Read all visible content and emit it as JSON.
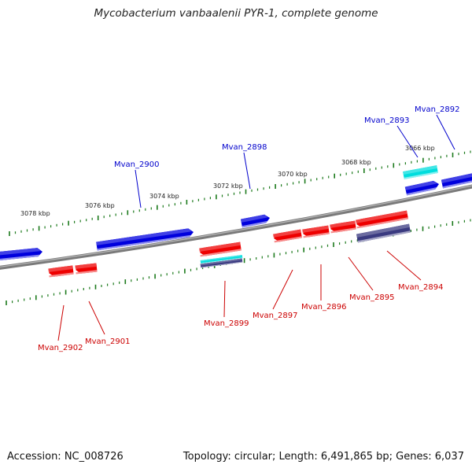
{
  "title": "Mycobacterium vanbaalenii PYR-1, complete genome",
  "footer": {
    "accession": "Accession: NC_008726",
    "summary": "Topology: circular; Length: 6,491,865 bp; Genes: 6,037"
  },
  "colors": {
    "forward_gene": "#0000dd",
    "reverse_gene": "#ee0000",
    "highlight_gene": "#00dddd",
    "other_feature": "#3a3a80",
    "backbone": "#808080",
    "tick": "#1c7a1c",
    "forward_label": "#0000cc",
    "reverse_label": "#cc0000"
  },
  "kbp_labels": [
    "3078 kbp",
    "3076 kbp",
    "3074 kbp",
    "3072 kbp",
    "3070 kbp",
    "3068 kbp",
    "3066 kbp"
  ],
  "genes": [
    {
      "name": "Mvan_2892",
      "strand": "forward"
    },
    {
      "name": "Mvan_2893",
      "strand": "forward"
    },
    {
      "name": "Mvan_2894",
      "strand": "reverse"
    },
    {
      "name": "Mvan_2895",
      "strand": "reverse"
    },
    {
      "name": "Mvan_2896",
      "strand": "reverse"
    },
    {
      "name": "Mvan_2897",
      "strand": "reverse"
    },
    {
      "name": "Mvan_2898",
      "strand": "forward"
    },
    {
      "name": "Mvan_2899",
      "strand": "reverse"
    },
    {
      "name": "Mvan_2900",
      "strand": "forward"
    },
    {
      "name": "Mvan_2901",
      "strand": "reverse"
    },
    {
      "name": "Mvan_2902",
      "strand": "reverse"
    }
  ]
}
